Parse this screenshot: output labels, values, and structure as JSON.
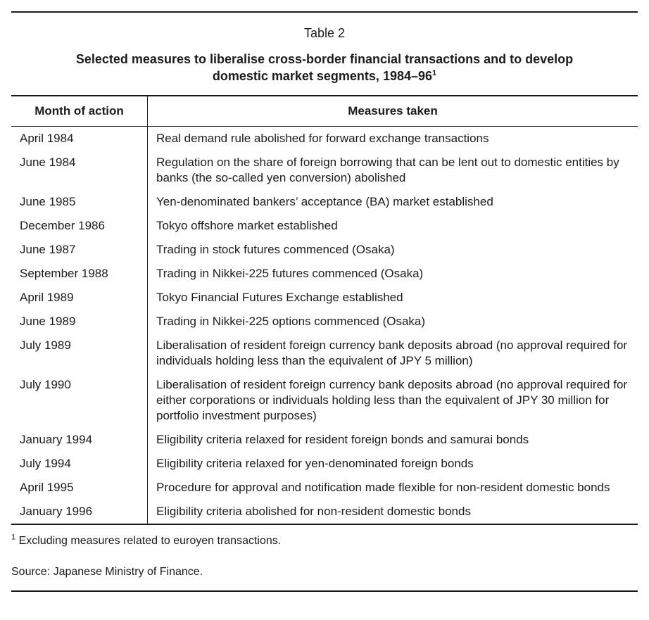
{
  "page": {
    "caption": "Table 2",
    "title": {
      "line1": "Selected measures to liberalise cross-border financial transactions and to develop",
      "line2": "domestic market segments, 1984–96",
      "footnote_marker": "1"
    }
  },
  "table": {
    "columns": [
      {
        "label": "Month of action"
      },
      {
        "label": "Measures taken"
      }
    ],
    "rows": [
      {
        "month": "April 1984",
        "measure": "Real demand rule abolished for forward exchange transactions"
      },
      {
        "month": "June 1984",
        "measure": "Regulation on the share of foreign borrowing that can be lent out to domestic entities by banks (the so-called yen conversion) abolished"
      },
      {
        "month": "June 1985",
        "measure": "Yen-denominated bankers’ acceptance (BA) market established"
      },
      {
        "month": "December 1986",
        "measure": "Tokyo offshore market established"
      },
      {
        "month": "June 1987",
        "measure": "Trading in stock futures commenced (Osaka)"
      },
      {
        "month": "September 1988",
        "measure": "Trading in Nikkei-225 futures commenced (Osaka)"
      },
      {
        "month": "April 1989",
        "measure": "Tokyo Financial Futures Exchange established"
      },
      {
        "month": "June 1989",
        "measure": "Trading in Nikkei-225 options commenced (Osaka)"
      },
      {
        "month": "July 1989",
        "measure": "Liberalisation of resident foreign currency bank deposits abroad (no approval required for individuals holding less than the equivalent of JPY 5 million)"
      },
      {
        "month": "July 1990",
        "measure": "Liberalisation of resident foreign currency bank deposits abroad (no approval required for either corporations or individuals holding less than the equivalent of JPY 30 million for portfolio investment purposes)"
      },
      {
        "month": "January 1994",
        "measure": "Eligibility criteria relaxed for resident foreign bonds and samurai bonds"
      },
      {
        "month": "July 1994",
        "measure": "Eligibility criteria relaxed for yen-denominated foreign bonds"
      },
      {
        "month": "April 1995",
        "measure": "Procedure for approval and notification made flexible for non-resident domestic bonds"
      },
      {
        "month": "January 1996",
        "measure": "Eligibility criteria abolished for non-resident domestic bonds"
      }
    ]
  },
  "footer": {
    "footnote_marker": "1",
    "footnote_text": " Excluding measures related to euroyen transactions.",
    "source": "Source: Japanese Ministry of Finance."
  },
  "colors": {
    "background": "#ffffff",
    "text": "#1c1c1c",
    "rule": "#1a1a1a"
  }
}
